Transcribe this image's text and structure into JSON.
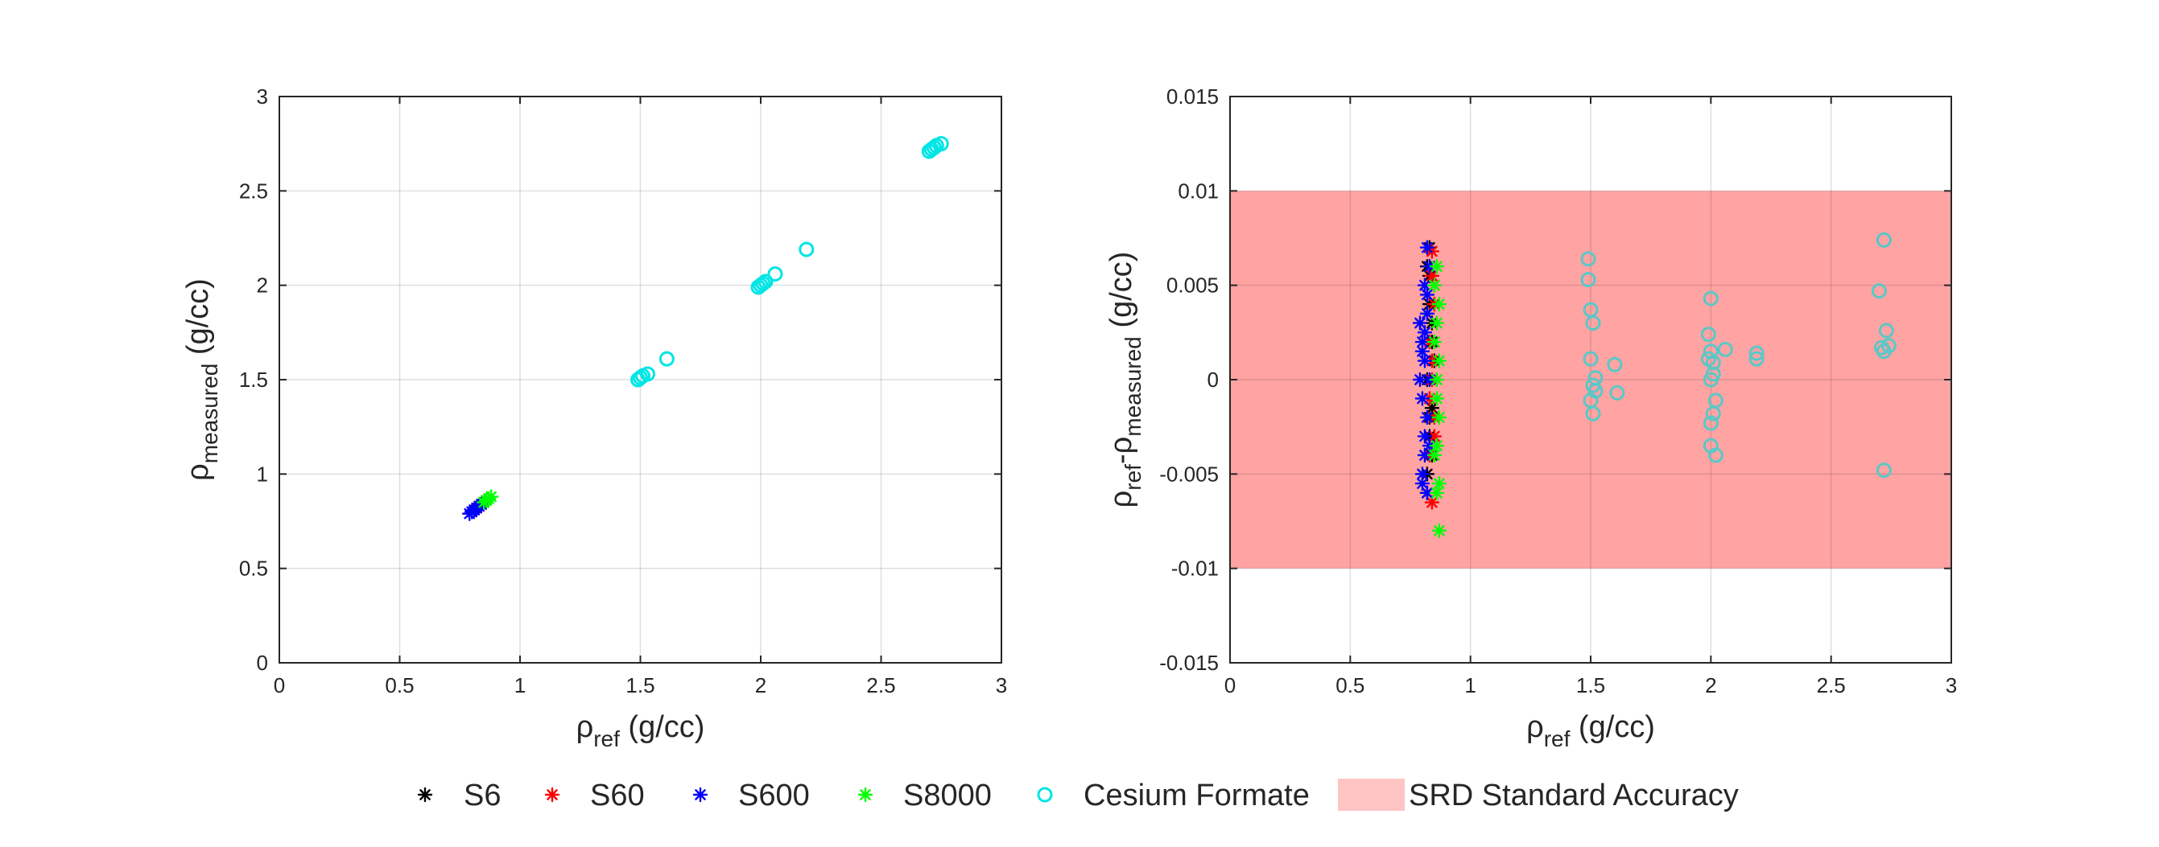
{
  "chart_data": [
    {
      "type": "scatter",
      "name": "measured-vs-ref",
      "xlabel": {
        "symbol": "ρ",
        "sub": "ref",
        "unit": " (g/cc)"
      },
      "ylabel": {
        "symbol": "ρ",
        "sub": "measured",
        "unit": " (g/cc)"
      },
      "xlim": [
        0,
        3
      ],
      "ylim": [
        0,
        3
      ],
      "xticks": [
        0,
        0.5,
        1,
        1.5,
        2,
        2.5,
        3
      ],
      "yticks": [
        0,
        0.5,
        1,
        1.5,
        2,
        2.5,
        3
      ],
      "xtick_labels": [
        "0",
        "0.5",
        "1",
        "1.5",
        "2",
        "2.5",
        "3"
      ],
      "ytick_labels": [
        "0",
        "0.5",
        "1",
        "1.5",
        "2",
        "2.5",
        "3"
      ],
      "grid": true,
      "series": [
        {
          "name": "S6",
          "marker": "asterisk",
          "color": "#000000",
          "points": [
            [
              0.8,
              0.8
            ],
            [
              0.81,
              0.81
            ],
            [
              0.82,
              0.82
            ],
            [
              0.83,
              0.83
            ],
            [
              0.84,
              0.84
            ],
            [
              0.85,
              0.85
            ]
          ]
        },
        {
          "name": "S60",
          "marker": "asterisk",
          "color": "#ff0000",
          "points": [
            [
              0.81,
              0.81
            ],
            [
              0.82,
              0.82
            ],
            [
              0.83,
              0.83
            ],
            [
              0.84,
              0.84
            ],
            [
              0.85,
              0.85
            ],
            [
              0.86,
              0.86
            ]
          ]
        },
        {
          "name": "S600",
          "marker": "asterisk",
          "color": "#0000ff",
          "points": [
            [
              0.79,
              0.79
            ],
            [
              0.8,
              0.8
            ],
            [
              0.81,
              0.81
            ],
            [
              0.82,
              0.82
            ],
            [
              0.83,
              0.83
            ],
            [
              0.84,
              0.84
            ]
          ]
        },
        {
          "name": "S8000",
          "marker": "asterisk",
          "color": "#00ff00",
          "points": [
            [
              0.85,
              0.85
            ],
            [
              0.86,
              0.86
            ],
            [
              0.87,
              0.87
            ],
            [
              0.88,
              0.88
            ]
          ]
        },
        {
          "name": "Cesium Formate",
          "marker": "circle",
          "color": "#00e5e5",
          "points": [
            [
              1.49,
              1.5
            ],
            [
              1.5,
              1.51
            ],
            [
              1.51,
              1.52
            ],
            [
              1.53,
              1.53
            ],
            [
              1.61,
              1.61
            ],
            [
              1.99,
              1.99
            ],
            [
              2.0,
              2.0
            ],
            [
              2.01,
              2.01
            ],
            [
              2.02,
              2.02
            ],
            [
              2.06,
              2.06
            ],
            [
              2.19,
              2.19
            ],
            [
              2.7,
              2.71
            ],
            [
              2.71,
              2.72
            ],
            [
              2.72,
              2.73
            ],
            [
              2.73,
              2.74
            ],
            [
              2.75,
              2.75
            ]
          ]
        }
      ]
    },
    {
      "type": "scatter",
      "name": "difference-vs-ref",
      "xlabel": {
        "symbol": "ρ",
        "sub": "ref",
        "unit": " (g/cc)"
      },
      "ylabel": {
        "symbol": "ρ",
        "sub": "ref",
        "mid": "-ρ",
        "sub2": "measured",
        "unit": " (g/cc)"
      },
      "xlim": [
        0,
        3
      ],
      "ylim": [
        -0.015,
        0.015
      ],
      "xticks": [
        0,
        0.5,
        1,
        1.5,
        2,
        2.5,
        3
      ],
      "yticks": [
        -0.015,
        -0.01,
        -0.005,
        0,
        0.005,
        0.01,
        0.015
      ],
      "xtick_labels": [
        "0",
        "0.5",
        "1",
        "1.5",
        "2",
        "2.5",
        "3"
      ],
      "ytick_labels": [
        "-0.015",
        "-0.01",
        "-0.005",
        "0",
        "0.005",
        "0.01",
        "0.015"
      ],
      "grid": true,
      "band": {
        "name": "SRD Standard Accuracy",
        "ymin": -0.01,
        "ymax": 0.01,
        "color": "#ff6666"
      },
      "series": [
        {
          "name": "S6",
          "marker": "asterisk",
          "color": "#000000",
          "points": [
            [
              0.82,
              0.006
            ],
            [
              0.83,
              0.004
            ],
            [
              0.84,
              0.002
            ],
            [
              0.82,
              0.0
            ],
            [
              0.83,
              -0.002
            ],
            [
              0.84,
              -0.004
            ],
            [
              0.82,
              -0.005
            ],
            [
              0.83,
              0.0055
            ],
            [
              0.84,
              -0.0015
            ],
            [
              0.85,
              0.001
            ],
            [
              0.83,
              0.007
            ],
            [
              0.82,
              -0.006
            ],
            [
              0.84,
              0.003
            ],
            [
              0.83,
              -0.003
            ]
          ]
        },
        {
          "name": "S60",
          "marker": "asterisk",
          "color": "#ff0000",
          "points": [
            [
              0.84,
              0.0068
            ],
            [
              0.85,
              0.004
            ],
            [
              0.83,
              0.002
            ],
            [
              0.84,
              0.0
            ],
            [
              0.85,
              -0.002
            ],
            [
              0.83,
              -0.004
            ],
            [
              0.84,
              -0.0065
            ],
            [
              0.85,
              0.005
            ],
            [
              0.83,
              -0.001
            ],
            [
              0.84,
              0.001
            ],
            [
              0.85,
              -0.003
            ],
            [
              0.84,
              0.0055
            ]
          ]
        },
        {
          "name": "S600",
          "marker": "asterisk",
          "color": "#0000ff",
          "points": [
            [
              0.8,
              0.002
            ],
            [
              0.81,
              0.001
            ],
            [
              0.79,
              0.0
            ],
            [
              0.8,
              -0.001
            ],
            [
              0.81,
              -0.003
            ],
            [
              0.8,
              -0.005
            ],
            [
              0.82,
              0.0035
            ],
            [
              0.81,
              0.005
            ],
            [
              0.82,
              0.007
            ],
            [
              0.8,
              -0.0055
            ],
            [
              0.82,
              -0.006
            ],
            [
              0.83,
              0.0
            ],
            [
              0.81,
              0.0025
            ],
            [
              0.82,
              -0.002
            ],
            [
              0.81,
              -0.004
            ],
            [
              0.79,
              0.003
            ],
            [
              0.83,
              0.006
            ],
            [
              0.8,
              0.0015
            ],
            [
              0.83,
              -0.0035
            ],
            [
              0.82,
              0.0045
            ]
          ]
        },
        {
          "name": "S8000",
          "marker": "asterisk",
          "color": "#00ff00",
          "points": [
            [
              0.86,
              0.006
            ],
            [
              0.87,
              0.004
            ],
            [
              0.85,
              0.002
            ],
            [
              0.86,
              0.0
            ],
            [
              0.87,
              -0.002
            ],
            [
              0.86,
              -0.0035
            ],
            [
              0.87,
              -0.0055
            ],
            [
              0.86,
              -0.006
            ],
            [
              0.87,
              -0.008
            ],
            [
              0.85,
              0.005
            ],
            [
              0.86,
              -0.001
            ],
            [
              0.87,
              0.001
            ],
            [
              0.86,
              0.003
            ],
            [
              0.85,
              -0.004
            ]
          ]
        },
        {
          "name": "Cesium Formate",
          "marker": "circle",
          "color": "#5ac8c8",
          "points": [
            [
              1.49,
              0.0064
            ],
            [
              1.49,
              0.0053
            ],
            [
              1.5,
              0.0037
            ],
            [
              1.51,
              0.003
            ],
            [
              1.5,
              0.0011
            ],
            [
              1.52,
              0.0001
            ],
            [
              1.51,
              -0.0003
            ],
            [
              1.52,
              -0.0006
            ],
            [
              1.5,
              -0.0011
            ],
            [
              1.51,
              -0.0018
            ],
            [
              1.6,
              0.0008
            ],
            [
              1.61,
              -0.0007
            ],
            [
              2.0,
              0.0043
            ],
            [
              1.99,
              0.0024
            ],
            [
              2.0,
              0.0015
            ],
            [
              2.01,
              0.0009
            ],
            [
              1.99,
              0.0011
            ],
            [
              2.01,
              0.0003
            ],
            [
              2.0,
              0.0
            ],
            [
              2.02,
              -0.0011
            ],
            [
              2.01,
              -0.0018
            ],
            [
              2.0,
              -0.0023
            ],
            [
              2.0,
              -0.0035
            ],
            [
              2.02,
              -0.004
            ],
            [
              2.06,
              0.0016
            ],
            [
              2.19,
              0.0011
            ],
            [
              2.19,
              0.0014
            ],
            [
              2.7,
              0.0047
            ],
            [
              2.72,
              0.0074
            ],
            [
              2.73,
              0.0026
            ],
            [
              2.72,
              0.0015
            ],
            [
              2.71,
              0.0017
            ],
            [
              2.74,
              0.0018
            ],
            [
              2.72,
              -0.0048
            ]
          ]
        }
      ]
    }
  ],
  "legend": {
    "entries": [
      {
        "label": "S6",
        "marker": "asterisk",
        "color": "#000000"
      },
      {
        "label": "S60",
        "marker": "asterisk",
        "color": "#ff0000"
      },
      {
        "label": "S600",
        "marker": "asterisk",
        "color": "#0000ff"
      },
      {
        "label": "S8000",
        "marker": "asterisk",
        "color": "#00ff00"
      },
      {
        "label": "Cesium Formate",
        "marker": "circle",
        "color": "#00e5e5"
      },
      {
        "label": "SRD Standard Accuracy",
        "marker": "patch",
        "color": "#ffc4c4"
      }
    ]
  }
}
